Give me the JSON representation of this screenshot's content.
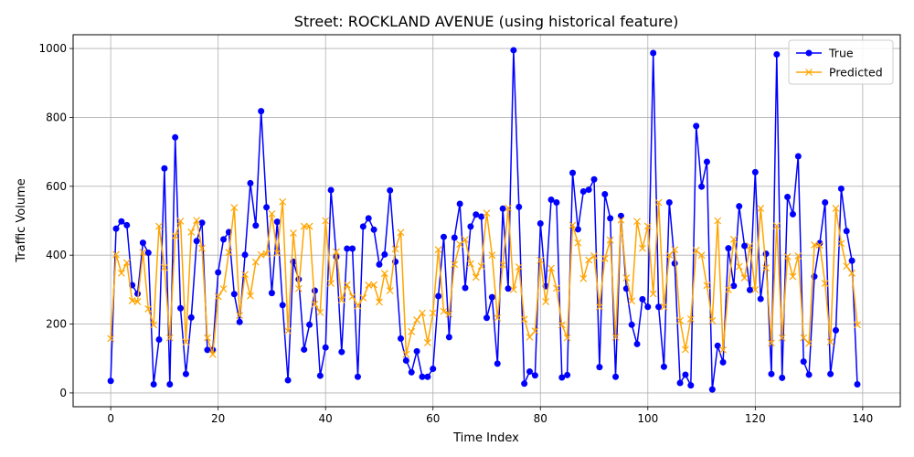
{
  "chart_data": {
    "type": "line",
    "title": "Street: ROCKLAND AVENUE (using historical feature)",
    "xlabel": "Time Index",
    "ylabel": "Traffic Volume",
    "xlim": [
      -7,
      147
    ],
    "ylim": [
      -40,
      1040
    ],
    "xticks": [
      0,
      20,
      40,
      60,
      80,
      100,
      120,
      140
    ],
    "yticks": [
      0,
      200,
      400,
      600,
      800,
      1000
    ],
    "grid": true,
    "legend_position": "top-right",
    "series": [
      {
        "name": "True",
        "color": "#0000ff",
        "marker": "circle",
        "values": [
          35,
          477,
          498,
          487,
          313,
          288,
          436,
          407,
          25,
          155,
          652,
          25,
          742,
          246,
          55,
          219,
          441,
          494,
          125,
          125,
          350,
          446,
          467,
          287,
          206,
          401,
          609,
          486,
          818,
          539,
          290,
          497,
          255,
          37,
          381,
          330,
          126,
          198,
          297,
          50,
          132,
          589,
          395,
          119,
          419,
          419,
          47,
          483,
          507,
          474,
          373,
          402,
          588,
          381,
          158,
          94,
          60,
          121,
          47,
          47,
          70,
          281,
          453,
          162,
          451,
          549,
          305,
          483,
          518,
          512,
          218,
          278,
          85,
          535,
          303,
          995,
          540,
          27,
          62,
          51,
          492,
          310,
          561,
          553,
          45,
          52,
          639,
          475,
          585,
          590,
          620,
          75,
          577,
          507,
          47,
          514,
          303,
          198,
          142,
          272,
          250,
          987,
          250,
          76,
          553,
          376,
          29,
          53,
          22,
          775,
          599,
          671,
          10,
          137,
          89,
          420,
          311,
          542,
          427,
          299,
          641,
          273,
          404,
          55,
          983,
          44,
          569,
          519,
          687,
          91,
          53,
          338,
          435,
          553,
          55,
          182,
          593,
          470,
          384,
          25
        ]
      },
      {
        "name": "Predicted",
        "color": "#ffa500",
        "marker": "x",
        "values": [
          158,
          402,
          348,
          378,
          268,
          265,
          408,
          244,
          198,
          484,
          364,
          160,
          456,
          499,
          148,
          467,
          501,
          420,
          160,
          112,
          280,
          302,
          408,
          538,
          225,
          344,
          282,
          380,
          401,
          404,
          520,
          406,
          555,
          180,
          464,
          303,
          484,
          484,
          258,
          234,
          500,
          318,
          410,
          270,
          314,
          280,
          253,
          276,
          313,
          314,
          264,
          347,
          297,
          418,
          466,
          112,
          178,
          212,
          232,
          146,
          232,
          416,
          237,
          229,
          373,
          432,
          445,
          375,
          336,
          368,
          522,
          400,
          218,
          372,
          537,
          300,
          366,
          214,
          162,
          180,
          385,
          265,
          362,
          304,
          198,
          160,
          487,
          436,
          332,
          386,
          398,
          250,
          390,
          444,
          162,
          502,
          334,
          267,
          498,
          420,
          484,
          288,
          553,
          250,
          400,
          416,
          210,
          126,
          215,
          414,
          400,
          312,
          210,
          500,
          125,
          300,
          446,
          367,
          334,
          427,
          300,
          536,
          363,
          145,
          485,
          160,
          396,
          338,
          398,
          160,
          144,
          430,
          429,
          318,
          148,
          536,
          434,
          368,
          348,
          198
        ]
      }
    ]
  }
}
